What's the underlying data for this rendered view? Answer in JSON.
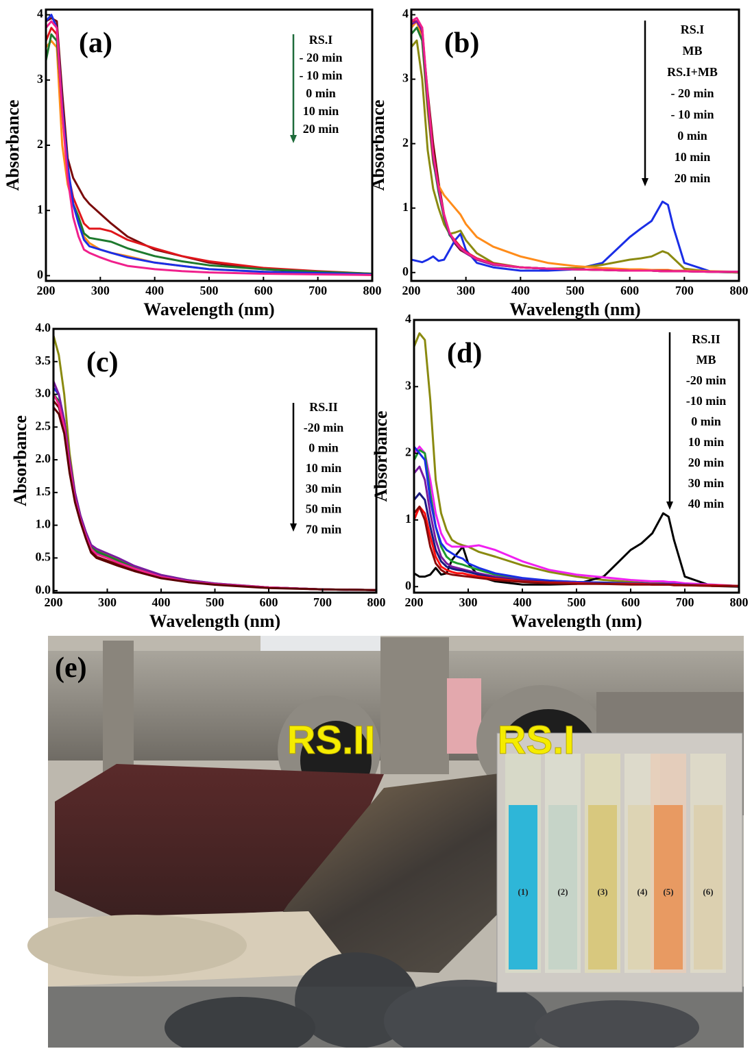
{
  "chart_data": [
    {
      "type": "line",
      "label": "(a)",
      "x_label": "Wavelength (nm)",
      "y_label": "Absorbance",
      "x": [
        200,
        210,
        220,
        230,
        240,
        250,
        260,
        270,
        280,
        300,
        320,
        350,
        400,
        450,
        500,
        600,
        700,
        800
      ],
      "xlim": [
        200,
        800
      ],
      "xticks": [
        200,
        300,
        400,
        500,
        600,
        700,
        800
      ],
      "ylim": [
        -0.08,
        4.08
      ],
      "yticks": [
        0,
        1,
        2,
        3,
        4
      ],
      "series": [
        {
          "name": "RS.I",
          "color": "#7a0a0a",
          "values": [
            3.9,
            3.95,
            3.9,
            2.8,
            1.8,
            1.5,
            1.35,
            1.2,
            1.1,
            0.95,
            0.8,
            0.6,
            0.4,
            0.3,
            0.2,
            0.1,
            0.05,
            0.02
          ]
        },
        {
          "name": "- 20 min",
          "color": "#ff8c1a",
          "values": [
            3.5,
            3.6,
            3.5,
            2.0,
            1.4,
            1.1,
            0.9,
            0.6,
            0.5,
            0.4,
            0.35,
            0.3,
            0.2,
            0.15,
            0.1,
            0.06,
            0.03,
            0.01
          ]
        },
        {
          "name": "- 10 min",
          "color": "#e0161b",
          "values": [
            3.6,
            3.8,
            3.7,
            2.5,
            1.6,
            1.2,
            1.0,
            0.8,
            0.72,
            0.72,
            0.68,
            0.55,
            0.42,
            0.3,
            0.22,
            0.12,
            0.07,
            0.03
          ]
        },
        {
          "name": "0 min",
          "color": "#1e7a2e",
          "values": [
            3.3,
            3.7,
            3.6,
            2.6,
            1.6,
            1.1,
            0.9,
            0.65,
            0.58,
            0.55,
            0.52,
            0.42,
            0.3,
            0.22,
            0.16,
            0.1,
            0.06,
            0.03
          ]
        },
        {
          "name": "10 min",
          "color": "#1a2ee6",
          "values": [
            3.9,
            4.0,
            3.8,
            2.6,
            1.7,
            1.1,
            0.8,
            0.55,
            0.45,
            0.4,
            0.35,
            0.28,
            0.2,
            0.15,
            0.1,
            0.06,
            0.04,
            0.02
          ]
        },
        {
          "name": "20 min",
          "color": "#f0208c",
          "values": [
            3.8,
            3.9,
            3.8,
            2.5,
            1.5,
            0.9,
            0.6,
            0.4,
            0.35,
            0.28,
            0.22,
            0.15,
            0.1,
            0.07,
            0.05,
            0.03,
            0.02,
            0.01
          ]
        }
      ]
    },
    {
      "type": "line",
      "label": "(b)",
      "x_label": "Wavelength (nm)",
      "y_label": "Absorbance",
      "x": [
        200,
        210,
        220,
        230,
        240,
        250,
        260,
        270,
        280,
        290,
        300,
        320,
        350,
        400,
        450,
        500,
        550,
        600,
        620,
        640,
        660,
        670,
        680,
        700,
        750,
        800
      ],
      "xlim": [
        200,
        800
      ],
      "xticks": [
        200,
        300,
        400,
        500,
        600,
        700,
        800
      ],
      "ylim": [
        -0.13,
        4.08
      ],
      "yticks": [
        0,
        1,
        2,
        3,
        4
      ],
      "series": [
        {
          "name": "RS.I",
          "color": "#7a0a0a",
          "values": [
            3.8,
            3.9,
            3.7,
            2.8,
            2.0,
            1.4,
            0.9,
            0.6,
            0.45,
            0.35,
            0.3,
            0.2,
            0.12,
            0.08,
            0.06,
            0.05,
            0.04,
            0.03,
            0.03,
            0.03,
            0.02,
            0.02,
            0.02,
            0.02,
            0.01,
            0.01
          ]
        },
        {
          "name": "MB",
          "color": "#1a2ee6",
          "values": [
            0.2,
            0.18,
            0.16,
            0.2,
            0.25,
            0.18,
            0.2,
            0.35,
            0.5,
            0.6,
            0.35,
            0.15,
            0.08,
            0.03,
            0.03,
            0.05,
            0.15,
            0.55,
            0.68,
            0.8,
            1.1,
            1.05,
            0.7,
            0.15,
            0.01,
            0.0
          ]
        },
        {
          "name": "RS.I+MB",
          "color": "#8a8a10",
          "values": [
            3.5,
            3.6,
            3.0,
            1.9,
            1.3,
            1.0,
            0.75,
            0.6,
            0.62,
            0.65,
            0.5,
            0.3,
            0.15,
            0.08,
            0.06,
            0.07,
            0.12,
            0.2,
            0.22,
            0.25,
            0.33,
            0.3,
            0.22,
            0.06,
            0.01,
            0.0
          ]
        },
        {
          "name": "- 20 min",
          "color": "#ff8c1a",
          "values": [
            3.8,
            3.9,
            3.6,
            2.5,
            1.7,
            1.35,
            1.2,
            1.1,
            1.0,
            0.9,
            0.75,
            0.55,
            0.4,
            0.25,
            0.15,
            0.1,
            0.07,
            0.05,
            0.05,
            0.04,
            0.04,
            0.04,
            0.03,
            0.03,
            0.02,
            0.01
          ]
        },
        {
          "name": "- 10 min",
          "color": "#e0161b",
          "values": [
            3.9,
            3.9,
            3.8,
            2.7,
            1.8,
            1.3,
            0.9,
            0.6,
            0.5,
            0.4,
            0.32,
            0.22,
            0.14,
            0.08,
            0.06,
            0.05,
            0.04,
            0.03,
            0.03,
            0.03,
            0.03,
            0.03,
            0.02,
            0.02,
            0.01,
            0.01
          ]
        },
        {
          "name": "0 min",
          "color": "#1e7a2e",
          "values": [
            3.7,
            3.8,
            3.6,
            2.6,
            1.75,
            1.25,
            0.85,
            0.58,
            0.48,
            0.38,
            0.3,
            0.2,
            0.13,
            0.08,
            0.06,
            0.05,
            0.04,
            0.03,
            0.03,
            0.03,
            0.02,
            0.02,
            0.02,
            0.02,
            0.01,
            0.01
          ]
        },
        {
          "name": "10 min",
          "color": "#7a1aa0",
          "values": [
            3.85,
            3.9,
            3.75,
            2.7,
            1.8,
            1.3,
            0.88,
            0.6,
            0.47,
            0.37,
            0.3,
            0.2,
            0.12,
            0.08,
            0.06,
            0.05,
            0.04,
            0.03,
            0.03,
            0.03,
            0.02,
            0.02,
            0.02,
            0.02,
            0.01,
            0.01
          ]
        },
        {
          "name": "20 min",
          "color": "#f0208c",
          "values": [
            3.9,
            3.95,
            3.8,
            2.75,
            1.85,
            1.32,
            0.9,
            0.62,
            0.48,
            0.38,
            0.31,
            0.21,
            0.13,
            0.08,
            0.06,
            0.05,
            0.04,
            0.03,
            0.03,
            0.03,
            0.02,
            0.02,
            0.02,
            0.02,
            0.01,
            0.01
          ]
        }
      ]
    },
    {
      "type": "line",
      "label": "(c)",
      "x_label": "Wavelength (nm)",
      "y_label": "Absorbance",
      "x": [
        200,
        210,
        220,
        230,
        240,
        250,
        260,
        270,
        280,
        300,
        320,
        350,
        400,
        450,
        500,
        600,
        700,
        800
      ],
      "xlim": [
        200,
        800
      ],
      "xticks": [
        200,
        300,
        400,
        500,
        600,
        700,
        800
      ],
      "ylim": [
        -0.03,
        4.0
      ],
      "yticks": [
        {
          "value": 0,
          "label": "0.0"
        },
        {
          "value": 0.5,
          "label": "0.5"
        },
        {
          "value": 1,
          "label": "1.0"
        },
        {
          "value": 1.5,
          "label": "1.5"
        },
        {
          "value": 2,
          "label": "2.0"
        },
        {
          "value": 2.5,
          "label": "2.5"
        },
        {
          "value": 3,
          "label": "3.0"
        },
        {
          "value": 3.5,
          "label": "3.5"
        },
        {
          "value": 4,
          "label": "4.0"
        }
      ],
      "series": [
        {
          "name": "RS.II",
          "color": "#8a8a10",
          "values": [
            3.9,
            3.6,
            3.0,
            2.1,
            1.5,
            1.15,
            0.9,
            0.7,
            0.62,
            0.55,
            0.48,
            0.37,
            0.24,
            0.16,
            0.11,
            0.05,
            0.02,
            0.01
          ]
        },
        {
          "name": "-20 min",
          "color": "#7a0a0a",
          "values": [
            2.9,
            2.8,
            2.5,
            1.9,
            1.4,
            1.1,
            0.85,
            0.62,
            0.52,
            0.46,
            0.4,
            0.32,
            0.2,
            0.14,
            0.1,
            0.05,
            0.02,
            0.01
          ]
        },
        {
          "name": "0 min",
          "color": "#1a2ee6",
          "values": [
            3.1,
            3.0,
            2.6,
            1.95,
            1.45,
            1.1,
            0.85,
            0.65,
            0.58,
            0.52,
            0.45,
            0.35,
            0.22,
            0.15,
            0.1,
            0.05,
            0.02,
            0.01
          ]
        },
        {
          "name": "10 min",
          "color": "#1e7a2e",
          "values": [
            3.0,
            2.9,
            2.55,
            1.9,
            1.42,
            1.1,
            0.86,
            0.66,
            0.6,
            0.53,
            0.46,
            0.35,
            0.22,
            0.15,
            0.1,
            0.05,
            0.02,
            0.01
          ]
        },
        {
          "name": "30 min",
          "color": "#7a1aa0",
          "values": [
            3.2,
            3.0,
            2.6,
            2.0,
            1.5,
            1.15,
            0.9,
            0.7,
            0.64,
            0.57,
            0.5,
            0.38,
            0.24,
            0.16,
            0.11,
            0.05,
            0.02,
            0.01
          ]
        },
        {
          "name": "50 min",
          "color": "#f0208c",
          "values": [
            3.0,
            2.85,
            2.5,
            1.9,
            1.4,
            1.08,
            0.84,
            0.64,
            0.56,
            0.5,
            0.43,
            0.34,
            0.21,
            0.14,
            0.1,
            0.05,
            0.02,
            0.01
          ]
        },
        {
          "name": "70 min",
          "color": "#5a0000",
          "values": [
            2.8,
            2.7,
            2.4,
            1.8,
            1.35,
            1.05,
            0.8,
            0.58,
            0.5,
            0.44,
            0.38,
            0.3,
            0.19,
            0.13,
            0.09,
            0.04,
            0.02,
            0.01
          ]
        }
      ]
    },
    {
      "type": "line",
      "label": "(d)",
      "x_label": "Wavelength (nm)",
      "y_label": "Absorbance",
      "x": [
        200,
        210,
        220,
        230,
        240,
        250,
        260,
        270,
        280,
        290,
        300,
        320,
        350,
        400,
        450,
        500,
        550,
        600,
        620,
        640,
        660,
        670,
        680,
        700,
        750,
        800
      ],
      "xlim": [
        200,
        800
      ],
      "xticks": [
        200,
        300,
        400,
        500,
        600,
        700,
        800
      ],
      "ylim": [
        -0.09,
        4.0
      ],
      "yticks": [
        0,
        1,
        2,
        3,
        4
      ],
      "series": [
        {
          "name": "RS.II",
          "color": "#8a8a10",
          "values": [
            3.6,
            3.8,
            3.7,
            2.8,
            1.6,
            1.1,
            0.85,
            0.7,
            0.65,
            0.62,
            0.6,
            0.52,
            0.45,
            0.32,
            0.22,
            0.15,
            0.1,
            0.07,
            0.06,
            0.05,
            0.05,
            0.05,
            0.04,
            0.03,
            0.02,
            0.01
          ]
        },
        {
          "name": "MB",
          "color": "#000000",
          "values": [
            0.2,
            0.15,
            0.15,
            0.18,
            0.28,
            0.18,
            0.2,
            0.4,
            0.5,
            0.6,
            0.35,
            0.15,
            0.08,
            0.03,
            0.03,
            0.04,
            0.15,
            0.55,
            0.65,
            0.8,
            1.1,
            1.05,
            0.7,
            0.15,
            0.01,
            0.0
          ]
        },
        {
          "name": "-20 min",
          "color": "#f020f0",
          "values": [
            2.0,
            2.1,
            2.0,
            1.6,
            1.1,
            0.8,
            0.65,
            0.6,
            0.6,
            0.6,
            0.6,
            0.62,
            0.55,
            0.38,
            0.25,
            0.18,
            0.14,
            0.1,
            0.09,
            0.08,
            0.08,
            0.07,
            0.07,
            0.05,
            0.03,
            0.01
          ]
        },
        {
          "name": "-10 min",
          "color": "#1e9a2e",
          "values": [
            1.9,
            2.05,
            2.0,
            1.4,
            0.9,
            0.6,
            0.45,
            0.38,
            0.35,
            0.33,
            0.3,
            0.25,
            0.18,
            0.12,
            0.09,
            0.07,
            0.06,
            0.05,
            0.05,
            0.04,
            0.04,
            0.04,
            0.04,
            0.03,
            0.02,
            0.01
          ]
        },
        {
          "name": "0 min",
          "color": "#1a2ee6",
          "values": [
            2.1,
            2.0,
            1.9,
            1.3,
            0.9,
            0.65,
            0.55,
            0.5,
            0.45,
            0.42,
            0.35,
            0.28,
            0.2,
            0.13,
            0.09,
            0.07,
            0.06,
            0.05,
            0.05,
            0.04,
            0.04,
            0.04,
            0.04,
            0.03,
            0.02,
            0.01
          ]
        },
        {
          "name": "10 min",
          "color": "#7a1aa0",
          "values": [
            1.7,
            1.8,
            1.6,
            1.1,
            0.7,
            0.45,
            0.35,
            0.3,
            0.28,
            0.26,
            0.24,
            0.2,
            0.15,
            0.1,
            0.07,
            0.06,
            0.05,
            0.04,
            0.04,
            0.04,
            0.03,
            0.03,
            0.03,
            0.03,
            0.02,
            0.01
          ]
        },
        {
          "name": "20 min",
          "color": "#1a1a80",
          "values": [
            1.3,
            1.4,
            1.3,
            0.9,
            0.55,
            0.38,
            0.3,
            0.27,
            0.25,
            0.24,
            0.22,
            0.18,
            0.13,
            0.09,
            0.07,
            0.05,
            0.05,
            0.04,
            0.04,
            0.03,
            0.03,
            0.03,
            0.03,
            0.02,
            0.02,
            0.01
          ]
        },
        {
          "name": "30 min",
          "color": "#ff1010",
          "values": [
            1.0,
            1.2,
            1.1,
            0.75,
            0.45,
            0.3,
            0.25,
            0.22,
            0.2,
            0.2,
            0.18,
            0.15,
            0.12,
            0.08,
            0.06,
            0.05,
            0.04,
            0.04,
            0.04,
            0.03,
            0.03,
            0.03,
            0.03,
            0.02,
            0.02,
            0.01
          ]
        },
        {
          "name": "40 min",
          "color": "#8a0a0a",
          "values": [
            1.1,
            1.2,
            1.0,
            0.6,
            0.35,
            0.25,
            0.2,
            0.18,
            0.17,
            0.16,
            0.15,
            0.13,
            0.1,
            0.07,
            0.05,
            0.04,
            0.04,
            0.03,
            0.03,
            0.03,
            0.03,
            0.03,
            0.02,
            0.02,
            0.01,
            0.01
          ]
        }
      ]
    }
  ],
  "photo": {
    "label": "(e)",
    "outlet_labels": [
      "RS.II",
      "RS.I"
    ],
    "cuvette_labels": [
      "(1)",
      "(2)",
      "(3)",
      "(4)",
      "(5)",
      "(6)"
    ]
  }
}
